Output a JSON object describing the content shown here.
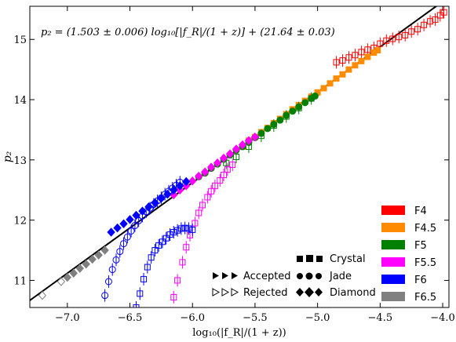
{
  "chart_data": {
    "type": "scatter",
    "annotation": "p₂ = (1.503 ± 0.006) log₁₀[|f_R|/(1 + z)] + (21.64 ± 0.03)",
    "xlabel": "log₁₀(|f_R|/(1 + z))",
    "ylabel": "p₂",
    "xlim": [
      -7.3,
      -3.95
    ],
    "ylim": [
      10.55,
      15.55
    ],
    "xticks": [
      -7.0,
      -6.5,
      -6.0,
      -5.5,
      -5.0,
      -4.5,
      -4.0
    ],
    "xtick_labels": [
      "−7.0",
      "−6.5",
      "−6.0",
      "−5.5",
      "−5.0",
      "−4.5",
      "−4.0"
    ],
    "yticks": [
      11,
      12,
      13,
      14,
      15
    ],
    "ytick_labels": [
      "11",
      "12",
      "13",
      "14",
      "15"
    ],
    "grid": false,
    "fit_line": {
      "slope": 1.503,
      "intercept": 21.64
    },
    "legend_colors": {
      "entries": [
        {
          "label": "F4",
          "color": "#ff0000"
        },
        {
          "label": "F4.5",
          "color": "#ff8c00"
        },
        {
          "label": "F5",
          "color": "#008000"
        },
        {
          "label": "F5.5",
          "color": "#ff00ff"
        },
        {
          "label": "F6",
          "color": "#0000ff"
        },
        {
          "label": "F6.5",
          "color": "#808080"
        }
      ],
      "placement": "bottom-right"
    },
    "legend_markers": {
      "accepted": "Accepted",
      "rejected": "Rejected",
      "crystal": "Crystal",
      "jade": "Jade",
      "diamond": "Diamond"
    },
    "series": [
      {
        "color": "#ff0000",
        "marker": "square",
        "filled": false,
        "x": [
          -4.85,
          -4.8,
          -4.75,
          -4.7,
          -4.65,
          -4.6,
          -4.55,
          -4.5,
          -4.45,
          -4.4,
          -4.35,
          -4.3,
          -4.25,
          -4.2,
          -4.15,
          -4.1,
          -4.06,
          -4.02,
          -3.99
        ],
        "y": [
          14.62,
          14.65,
          14.7,
          14.74,
          14.79,
          14.83,
          14.86,
          14.93,
          14.98,
          15.01,
          15.04,
          15.07,
          15.13,
          15.17,
          15.24,
          15.3,
          15.33,
          15.4,
          15.45
        ]
      },
      {
        "color": "#ff8c00",
        "marker": "square",
        "filled": true,
        "x": [
          -5.6,
          -5.55,
          -5.5,
          -5.45,
          -5.4,
          -5.35,
          -5.3,
          -5.25,
          -5.2,
          -5.15,
          -5.1,
          -5.05,
          -5.0,
          -4.95,
          -4.9,
          -4.85,
          -4.8,
          -4.75,
          -4.7,
          -4.65,
          -4.6,
          -4.55,
          -4.52
        ],
        "y": [
          13.22,
          13.32,
          13.38,
          13.46,
          13.53,
          13.61,
          13.68,
          13.76,
          13.84,
          13.91,
          13.98,
          14.05,
          14.12,
          14.19,
          14.27,
          14.35,
          14.42,
          14.5,
          14.57,
          14.64,
          14.71,
          14.78,
          14.82
        ]
      },
      {
        "color": "#008000",
        "marker": "circle",
        "filled": true,
        "x": [
          -5.95,
          -5.9,
          -5.85,
          -5.8,
          -5.75,
          -5.7,
          -5.65,
          -5.6,
          -5.55,
          -5.5,
          -5.45,
          -5.4,
          -5.35,
          -5.3,
          -5.25,
          -5.2,
          -5.15,
          -5.1,
          -5.05,
          -5.02
        ],
        "y": [
          12.72,
          12.78,
          12.86,
          12.93,
          13.01,
          13.08,
          13.16,
          13.22,
          13.29,
          13.37,
          13.44,
          13.52,
          13.59,
          13.66,
          13.74,
          13.81,
          13.88,
          13.95,
          14.02,
          14.06
        ]
      },
      {
        "color": "#008000",
        "marker": "square",
        "filled": false,
        "x": [
          -5.73,
          -5.65,
          -5.55,
          -5.45,
          -5.35,
          -5.25,
          -5.15,
          -5.05
        ],
        "y": [
          12.95,
          13.05,
          13.22,
          13.4,
          13.57,
          13.72,
          13.86,
          14.02
        ]
      },
      {
        "color": "#ff00ff",
        "marker": "diamond",
        "filled": true,
        "x": [
          -6.15,
          -6.1,
          -6.05,
          -6.0,
          -5.95,
          -5.9,
          -5.85,
          -5.8,
          -5.75,
          -5.7,
          -5.65,
          -5.6,
          -5.55,
          -5.5
        ],
        "y": [
          12.42,
          12.5,
          12.57,
          12.65,
          12.73,
          12.8,
          12.88,
          12.95,
          13.03,
          13.1,
          13.18,
          13.25,
          13.32,
          13.38
        ]
      },
      {
        "color": "#ff00ff",
        "marker": "square",
        "filled": false,
        "x": [
          -6.15,
          -6.12,
          -6.08,
          -6.05,
          -6.02,
          -5.98,
          -5.95,
          -5.92,
          -5.88,
          -5.85,
          -5.82,
          -5.78,
          -5.75,
          -5.72,
          -5.68
        ],
        "y": [
          10.72,
          11.0,
          11.3,
          11.55,
          11.75,
          11.95,
          12.12,
          12.25,
          12.38,
          12.48,
          12.57,
          12.66,
          12.75,
          12.84,
          12.92
        ]
      },
      {
        "color": "#0000ff",
        "marker": "diamond",
        "filled": true,
        "x": [
          -6.65,
          -6.6,
          -6.55,
          -6.5,
          -6.45,
          -6.4,
          -6.35,
          -6.3,
          -6.25,
          -6.2,
          -6.15,
          -6.1,
          -6.05
        ],
        "y": [
          11.8,
          11.87,
          11.94,
          12.01,
          12.08,
          12.15,
          12.22,
          12.29,
          12.36,
          12.43,
          12.5,
          12.57,
          12.64
        ]
      },
      {
        "color": "#0000ff",
        "marker": "circle",
        "filled": false,
        "x": [
          -6.7,
          -6.67,
          -6.64,
          -6.61,
          -6.58,
          -6.55,
          -6.52,
          -6.49,
          -6.46,
          -6.43,
          -6.4,
          -6.37,
          -6.34,
          -6.31,
          -6.28,
          -6.25,
          -6.22,
          -6.19,
          -6.16,
          -6.13,
          -6.1
        ],
        "y": [
          10.75,
          10.98,
          11.18,
          11.34,
          11.48,
          11.61,
          11.72,
          11.82,
          11.91,
          11.99,
          12.07,
          12.14,
          12.2,
          12.26,
          12.32,
          12.37,
          12.43,
          12.48,
          12.53,
          12.58,
          12.63
        ]
      },
      {
        "color": "#0000ff",
        "marker": "square",
        "filled": false,
        "x": [
          -6.45,
          -6.42,
          -6.39,
          -6.36,
          -6.33,
          -6.3,
          -6.27,
          -6.24,
          -6.21,
          -6.18,
          -6.15,
          -6.12,
          -6.09,
          -6.06,
          -6.03,
          -6.0
        ],
        "y": [
          10.55,
          10.78,
          11.02,
          11.22,
          11.38,
          11.5,
          11.58,
          11.64,
          11.7,
          11.76,
          11.8,
          11.83,
          11.86,
          11.87,
          11.86,
          11.84
        ]
      },
      {
        "color": "#808080",
        "marker": "diamond",
        "filled": true,
        "x": [
          -7.0,
          -6.95,
          -6.9,
          -6.85,
          -6.8,
          -6.75,
          -6.7
        ],
        "y": [
          11.05,
          11.12,
          11.2,
          11.27,
          11.35,
          11.42,
          11.5
        ]
      },
      {
        "color": "#808080",
        "marker": "diamond",
        "filled": false,
        "x": [
          -7.2,
          -7.05
        ],
        "y": [
          10.75,
          10.98
        ]
      }
    ]
  }
}
